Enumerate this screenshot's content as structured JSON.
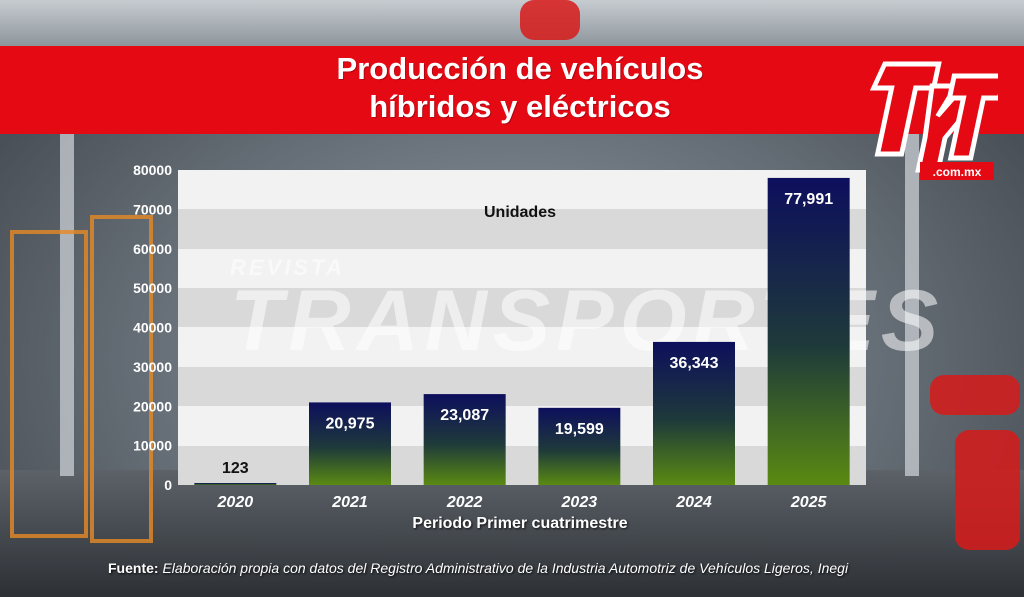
{
  "header": {
    "title_line1": "Producción de vehículos",
    "title_line2": "híbridos y eléctricos"
  },
  "logo": {
    "text": "TyT",
    "domain": ".com.mx",
    "icon": "tyt-logo"
  },
  "watermark": {
    "line1": "REVISTA",
    "line2": "TRANSPORTES"
  },
  "source": {
    "label": "Fuente:",
    "text": "Elaboración propia con datos del Registro Administrativo de la Industria Automotriz de Vehículos Ligeros, Inegi"
  },
  "colors": {
    "banner": "#e50914",
    "bar_top": "#0d0f5c",
    "bar_bottom": "#5a8a12",
    "stripe_light": "#f2f2f2",
    "stripe_dark": "#d9d9d9"
  },
  "chart_data": {
    "type": "bar",
    "title": "Producción de vehículos híbridos y eléctricos",
    "series_label": "Unidades",
    "xlabel": "Periodo Primer cuatrimestre",
    "ylabel": "",
    "categories": [
      "2020",
      "2021",
      "2022",
      "2023",
      "2024",
      "2025"
    ],
    "values": [
      123,
      20975,
      23087,
      19599,
      36343,
      77991
    ],
    "value_labels": [
      "123",
      "20,975",
      "23,087",
      "19,599",
      "36,343",
      "77,991"
    ],
    "ylim": [
      0,
      80000
    ],
    "yticks": [
      0,
      10000,
      20000,
      30000,
      40000,
      50000,
      60000,
      70000,
      80000
    ],
    "ytick_labels": [
      "0",
      "10000",
      "20000",
      "30000",
      "40000",
      "50000",
      "60000",
      "70000",
      "80000"
    ],
    "grid": "alternating horizontal bands",
    "legend": "none"
  }
}
